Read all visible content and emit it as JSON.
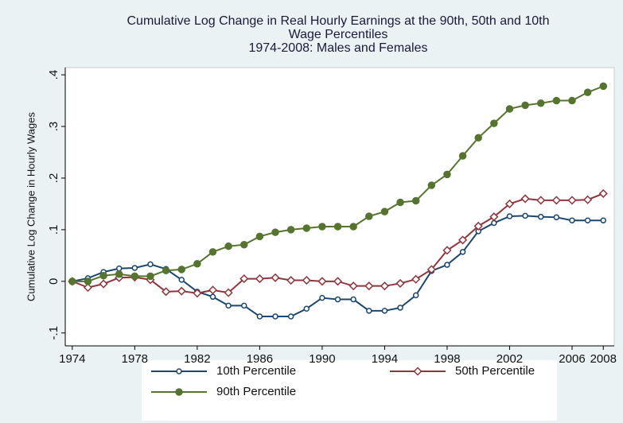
{
  "chart_data": {
    "type": "line",
    "title": [
      "Cumulative Log Change in Real Hourly Earnings at the 90th, 50th and 10th",
      "Wage Percentiles",
      "1974-2008: Males and Females"
    ],
    "y_label": "Cumulative Log Change in Hourly Wages",
    "x": [
      1974,
      1975,
      1976,
      1977,
      1978,
      1979,
      1980,
      1981,
      1982,
      1983,
      1984,
      1985,
      1986,
      1987,
      1988,
      1989,
      1990,
      1991,
      1992,
      1993,
      1994,
      1995,
      1996,
      1997,
      1998,
      1999,
      2000,
      2001,
      2002,
      2003,
      2004,
      2005,
      2006,
      2007,
      2008
    ],
    "series": [
      {
        "name": "10th Percentile",
        "color": "#1a476f",
        "marker": "hollow-circle",
        "values": [
          0,
          0.006,
          0.018,
          0.025,
          0.026,
          0.033,
          0.024,
          0.003,
          -0.02,
          -0.03,
          -0.047,
          -0.047,
          -0.068,
          -0.068,
          -0.068,
          -0.053,
          -0.032,
          -0.035,
          -0.035,
          -0.057,
          -0.057,
          -0.051,
          -0.027,
          0.02,
          0.032,
          0.057,
          0.097,
          0.113,
          0.126,
          0.127,
          0.125,
          0.124,
          0.118,
          0.118,
          0.118
        ]
      },
      {
        "name": "50th Percentile",
        "color": "#90353b",
        "marker": "hollow-diamond",
        "values": [
          0,
          -0.012,
          -0.005,
          0.007,
          0.008,
          0.003,
          -0.02,
          -0.019,
          -0.023,
          -0.017,
          -0.022,
          0.005,
          0.005,
          0.007,
          0.002,
          0.002,
          0,
          0,
          -0.009,
          -0.009,
          -0.009,
          -0.004,
          0.004,
          0.023,
          0.06,
          0.08,
          0.107,
          0.125,
          0.15,
          0.16,
          0.157,
          0.157,
          0.157,
          0.158,
          0.17
        ]
      },
      {
        "name": "90th Percentile",
        "color": "#55752f",
        "marker": "filled-circle",
        "values": [
          0,
          0,
          0.011,
          0.014,
          0.01,
          0.01,
          0.021,
          0.023,
          0.034,
          0.057,
          0.068,
          0.071,
          0.087,
          0.095,
          0.1,
          0.103,
          0.106,
          0.106,
          0.106,
          0.126,
          0.135,
          0.153,
          0.156,
          0.186,
          0.207,
          0.243,
          0.278,
          0.306,
          0.334,
          0.341,
          0.345,
          0.35,
          0.35,
          0.366,
          0.378
        ]
      }
    ],
    "xlim": [
      1973.55,
      2008.7
    ],
    "xticks": [
      1974,
      1978,
      1982,
      1986,
      1990,
      1994,
      1998,
      2002,
      2006,
      2008
    ],
    "ylim": [
      -0.125,
      0.414
    ],
    "yticks": [
      {
        "value": -0.1,
        "label": "-.1"
      },
      0,
      {
        "value": 0.1,
        "label": ".1"
      },
      {
        "value": 0.2,
        "label": ".2"
      },
      {
        "value": 0.3,
        "label": ".3"
      },
      {
        "value": 0.4,
        "label": ".4"
      }
    ],
    "grid": false,
    "legend": "bottom"
  }
}
